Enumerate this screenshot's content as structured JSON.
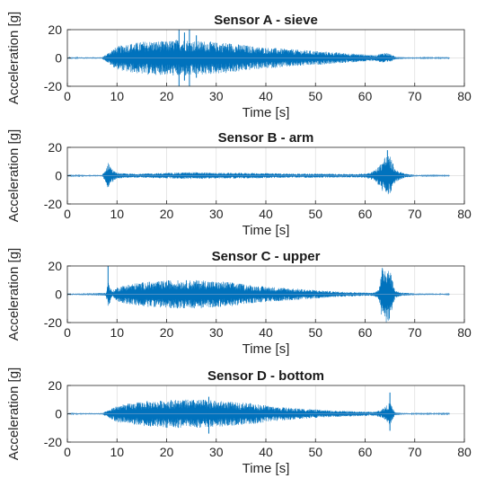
{
  "chart_data": [
    {
      "type": "line",
      "title": "Sensor A - sieve",
      "xlabel": "Time [s]",
      "ylabel": "Acceleration [g]",
      "xlim": [
        0,
        80
      ],
      "ylim": [
        -20,
        20
      ],
      "xticks": [
        "0",
        "10",
        "20",
        "30",
        "40",
        "50",
        "60",
        "70",
        "80"
      ],
      "yticks": [
        "-20",
        "0",
        "20"
      ],
      "grid": true,
      "color": "#0072BD",
      "series": [
        {
          "x": [
            0,
            7,
            8,
            9,
            10,
            12,
            14,
            16,
            18,
            20,
            22,
            24,
            26,
            28,
            30,
            32,
            34,
            36,
            38,
            40,
            42,
            44,
            46,
            48,
            50,
            52,
            54,
            56,
            58,
            60,
            62,
            63,
            64,
            65,
            66,
            68,
            70,
            72,
            74,
            76,
            77
          ],
          "amplitude": [
            0.3,
            0.5,
            3,
            6,
            8,
            10,
            11,
            12,
            12,
            12,
            13,
            13,
            12,
            12,
            11,
            11,
            10,
            9,
            8,
            7.5,
            7,
            6.5,
            6,
            5.5,
            5,
            4.5,
            4,
            3.5,
            3,
            2.5,
            2,
            3,
            4,
            3,
            1,
            0.5,
            0.4,
            0.3,
            0.3,
            0.3,
            0.3
          ],
          "peaks": [
            {
              "x": 22.5,
              "min": -20,
              "max": 20
            },
            {
              "x": 23.6,
              "min": -16,
              "max": 18
            },
            {
              "x": 24.6,
              "min": -20,
              "max": 20
            },
            {
              "x": 26.0,
              "min": -14,
              "max": 16
            }
          ]
        }
      ]
    },
    {
      "type": "line",
      "title": "Sensor B - arm",
      "xlabel": "Time [s]",
      "ylabel": "Acceleration [g]",
      "xlim": [
        0,
        80
      ],
      "ylim": [
        -20,
        20
      ],
      "xticks": [
        "0",
        "10",
        "20",
        "30",
        "40",
        "50",
        "60",
        "70",
        "80"
      ],
      "yticks": [
        "-20",
        "0",
        "20"
      ],
      "grid": true,
      "color": "#0072BD",
      "series": [
        {
          "x": [
            0,
            7,
            7.5,
            8,
            8.3,
            9,
            9.5,
            10,
            12,
            15,
            20,
            25,
            30,
            35,
            40,
            45,
            50,
            55,
            58,
            60,
            61,
            62,
            63,
            64,
            64.5,
            65,
            65.5,
            66,
            67,
            68,
            70,
            72,
            75,
            77
          ],
          "amplitude": [
            0.2,
            0.5,
            3,
            7,
            10,
            5,
            3,
            2,
            1.5,
            1.5,
            2,
            2.5,
            2,
            2,
            1.8,
            1.5,
            1.5,
            1.3,
            1.2,
            1.5,
            2.5,
            4,
            8,
            14,
            15,
            14,
            10,
            5,
            3,
            1.5,
            0.5,
            0.3,
            0.2,
            0.2
          ],
          "peaks": [
            {
              "x": 64.5,
              "min": -10,
              "max": 18
            }
          ]
        }
      ]
    },
    {
      "type": "line",
      "title": "Sensor C - upper",
      "xlabel": "Time [s]",
      "ylabel": "Acceleration [g]",
      "xlim": [
        0,
        80
      ],
      "ylim": [
        -20,
        20
      ],
      "xticks": [
        "0",
        "10",
        "20",
        "30",
        "40",
        "50",
        "60",
        "70",
        "80"
      ],
      "yticks": [
        "-20",
        "0",
        "20"
      ],
      "grid": true,
      "color": "#0072BD",
      "series": [
        {
          "x": [
            0,
            7.8,
            8.2,
            8.6,
            9,
            10,
            12,
            14,
            16,
            18,
            20,
            22,
            24,
            26,
            28,
            30,
            32,
            34,
            36,
            38,
            40,
            42,
            44,
            46,
            48,
            50,
            52,
            54,
            56,
            58,
            60,
            61,
            62,
            62.5,
            63,
            63.5,
            64,
            64.5,
            65,
            65.5,
            66,
            67,
            68,
            70,
            72,
            74,
            76,
            77
          ],
          "amplitude": [
            0.3,
            1,
            10,
            6,
            2,
            5,
            7,
            8,
            9,
            9,
            10,
            10,
            10,
            10,
            10,
            9,
            9,
            8,
            7,
            6,
            5.5,
            5,
            4.5,
            4,
            3.5,
            3,
            2.5,
            2,
            1.8,
            1.5,
            1.2,
            1,
            1.5,
            3,
            8,
            20,
            20,
            20,
            20,
            10,
            3,
            1.5,
            1,
            0.6,
            0.5,
            0.5,
            0.4,
            0.3
          ],
          "peaks": [
            {
              "x": 8.2,
              "min": -1,
              "max": 20
            }
          ]
        }
      ]
    },
    {
      "type": "line",
      "title": "Sensor D - bottom",
      "xlabel": "Time [s]",
      "ylabel": "Acceleration [g]",
      "xlim": [
        0,
        80
      ],
      "ylim": [
        -20,
        20
      ],
      "xticks": [
        "0",
        "10",
        "20",
        "30",
        "40",
        "50",
        "60",
        "70",
        "80"
      ],
      "yticks": [
        "-20",
        "0",
        "20"
      ],
      "grid": true,
      "color": "#0072BD",
      "series": [
        {
          "x": [
            0,
            7,
            8,
            9,
            10,
            12,
            14,
            16,
            18,
            20,
            22,
            24,
            26,
            28,
            30,
            32,
            34,
            36,
            38,
            40,
            42,
            44,
            46,
            48,
            50,
            52,
            54,
            56,
            58,
            60,
            62,
            63,
            64,
            65,
            66,
            68,
            70,
            72,
            74,
            76,
            77
          ],
          "amplitude": [
            0.3,
            0.5,
            2,
            4,
            6,
            7,
            8,
            9,
            9,
            10,
            10,
            10,
            10,
            10,
            9,
            9,
            8,
            8,
            7,
            6,
            5,
            4.5,
            4,
            3.5,
            3,
            2.5,
            2.2,
            2,
            1.8,
            1.5,
            1.5,
            2.5,
            5,
            8,
            1,
            0.5,
            0.3,
            0.3,
            0.3,
            0.3,
            0.3
          ],
          "peaks": [
            {
              "x": 28.5,
              "min": -14,
              "max": 12
            },
            {
              "x": 65.0,
              "min": -12,
              "max": 15
            }
          ]
        }
      ]
    }
  ]
}
